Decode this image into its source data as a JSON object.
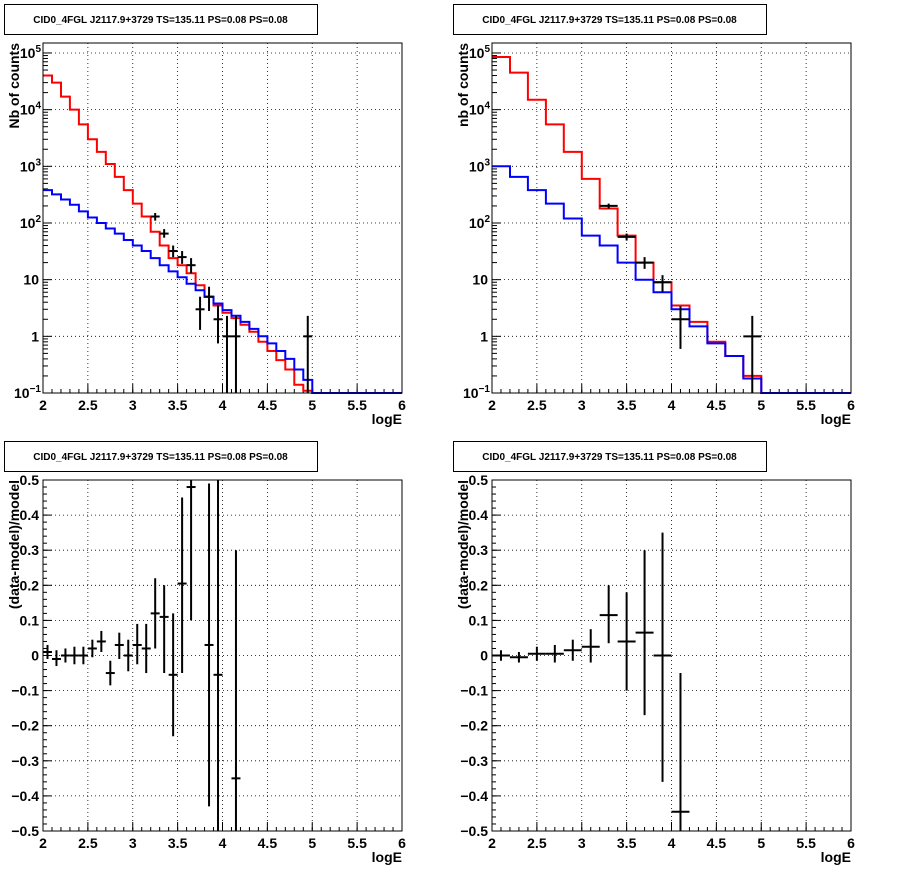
{
  "chart_data": [
    {
      "type": "histogram",
      "title": "CID0_4FGL J2117.9+3729 TS=135.11 PS=0.08 PS=0.08",
      "xlabel": "logE",
      "ylabel": "Nb of counts",
      "xlim": [
        2,
        6
      ],
      "ylim": [
        0.1,
        150000
      ],
      "yscale": "log",
      "grid": true,
      "x_ticks": [
        "2",
        "2.5",
        "3",
        "3.5",
        "4",
        "4.5",
        "5",
        "5.5",
        "6"
      ],
      "y_ticks": [
        {
          "value": 0.1,
          "base": "10",
          "exp": "−1"
        },
        {
          "value": 1,
          "label": "1"
        },
        {
          "value": 10,
          "label": "10"
        },
        {
          "value": 100,
          "base": "10",
          "exp": "2"
        },
        {
          "value": 1000,
          "base": "10",
          "exp": "3"
        },
        {
          "value": 10000,
          "base": "10",
          "exp": "4"
        },
        {
          "value": 100000,
          "base": "10",
          "exp": "5"
        }
      ],
      "bin_edges": [
        2.0,
        2.1,
        2.2,
        2.3,
        2.4,
        2.5,
        2.6,
        2.7,
        2.8,
        2.9,
        3.0,
        3.1,
        3.2,
        3.3,
        3.4,
        3.5,
        3.6,
        3.7,
        3.8,
        3.9,
        4.0,
        4.1,
        4.2,
        4.3,
        4.4,
        4.5,
        4.6,
        4.7,
        4.8,
        4.9,
        5.0,
        5.1,
        5.2,
        5.3,
        5.4,
        5.5,
        5.6,
        5.7,
        5.8,
        5.9,
        6.0
      ],
      "series": [
        {
          "color": "#ff0000",
          "values": [
            40000,
            30000,
            17000,
            10000,
            5500,
            3000,
            1800,
            1100,
            650,
            380,
            220,
            130,
            70,
            40,
            24,
            18,
            13,
            8,
            5,
            3.5,
            2.6,
            2.1,
            1.6,
            1.2,
            0.8,
            0.55,
            0.38,
            0.26,
            0.14,
            0.11,
            0.1,
            0.1,
            0.1,
            0.1,
            0.1,
            0.1,
            0.1,
            0.1,
            0.1,
            0.1
          ]
        },
        {
          "color": "#0000ff",
          "values": [
            380,
            320,
            260,
            210,
            160,
            125,
            100,
            80,
            65,
            50,
            40,
            32,
            24,
            18,
            14,
            11,
            8.5,
            6.5,
            5,
            3.8,
            2.9,
            2.3,
            1.8,
            1.35,
            1.0,
            0.75,
            0.55,
            0.4,
            0.26,
            0.17,
            0.1,
            0.1,
            0.1,
            0.1,
            0.1,
            0.1,
            0.1,
            0.1,
            0.1,
            0.1
          ]
        }
      ],
      "points": [
        {
          "x": 3.25,
          "y": 130,
          "ylo": 110,
          "yhi": 150
        },
        {
          "x": 3.35,
          "y": 65,
          "ylo": 55,
          "yhi": 78
        },
        {
          "x": 3.45,
          "y": 32,
          "ylo": 25,
          "yhi": 40
        },
        {
          "x": 3.55,
          "y": 25,
          "ylo": 19,
          "yhi": 32
        },
        {
          "x": 3.65,
          "y": 18,
          "ylo": 13,
          "yhi": 24
        },
        {
          "x": 3.75,
          "y": 3,
          "ylo": 1.3,
          "yhi": 5
        },
        {
          "x": 3.85,
          "y": 5,
          "ylo": 2.8,
          "yhi": 7.5
        },
        {
          "x": 3.95,
          "y": 2,
          "ylo": 0.75,
          "yhi": 3.5
        },
        {
          "x": 4.05,
          "y": 1,
          "ylo": 0.1,
          "yhi": 2.3
        },
        {
          "x": 4.15,
          "y": 1,
          "ylo": 0.1,
          "yhi": 2.3
        },
        {
          "x": 4.95,
          "y": 1,
          "ylo": 0.1,
          "yhi": 2.3
        }
      ]
    },
    {
      "type": "histogram",
      "title": "CID0_4FGL J2117.9+3729 TS=135.11 PS=0.08 PS=0.08",
      "xlabel": "logE",
      "ylabel": "nb of counts",
      "xlim": [
        2,
        6
      ],
      "ylim": [
        0.1,
        150000
      ],
      "yscale": "log",
      "grid": true,
      "x_ticks": [
        "2",
        "2.5",
        "3",
        "3.5",
        "4",
        "4.5",
        "5",
        "5.5",
        "6"
      ],
      "y_ticks": [
        {
          "value": 0.1,
          "base": "10",
          "exp": "−1"
        },
        {
          "value": 1,
          "label": "1"
        },
        {
          "value": 10,
          "label": "10"
        },
        {
          "value": 100,
          "base": "10",
          "exp": "2"
        },
        {
          "value": 1000,
          "base": "10",
          "exp": "3"
        },
        {
          "value": 10000,
          "base": "10",
          "exp": "4"
        },
        {
          "value": 100000,
          "base": "10",
          "exp": "5"
        }
      ],
      "bin_edges": [
        2.0,
        2.2,
        2.4,
        2.6,
        2.8,
        3.0,
        3.2,
        3.4,
        3.6,
        3.8,
        4.0,
        4.2,
        4.4,
        4.6,
        4.8,
        5.0,
        5.2,
        5.4,
        5.6,
        5.8,
        6.0
      ],
      "series": [
        {
          "color": "#ff0000",
          "values": [
            85000,
            45000,
            15000,
            5500,
            1800,
            600,
            180,
            60,
            20,
            9,
            3.5,
            1.8,
            0.8,
            0.45,
            0.2,
            0.1,
            0.1,
            0.1,
            0.1,
            0.1
          ]
        },
        {
          "color": "#0000ff",
          "values": [
            1000,
            650,
            380,
            220,
            120,
            60,
            40,
            20,
            10,
            6,
            3,
            1.5,
            0.75,
            0.45,
            0.18,
            0.1,
            0.1,
            0.1,
            0.1,
            0.1
          ]
        }
      ],
      "points": [
        {
          "x": 3.3,
          "y": 200,
          "ylo": 180,
          "yhi": 220
        },
        {
          "x": 3.5,
          "y": 57,
          "ylo": 49,
          "yhi": 65
        },
        {
          "x": 3.7,
          "y": 20,
          "ylo": 15.5,
          "yhi": 25
        },
        {
          "x": 3.9,
          "y": 9,
          "ylo": 6,
          "yhi": 12
        },
        {
          "x": 4.1,
          "y": 2,
          "ylo": 0.6,
          "yhi": 3.4
        },
        {
          "x": 4.9,
          "y": 1,
          "ylo": 0.1,
          "yhi": 2.3
        }
      ]
    },
    {
      "type": "scatter",
      "title": "CID0_4FGL J2117.9+3729 TS=135.11 PS=0.08 PS=0.08",
      "xlabel": "logE",
      "ylabel": "(data-model)/model",
      "xlim": [
        2,
        6
      ],
      "ylim": [
        -0.5,
        0.5
      ],
      "grid": true,
      "x_ticks": [
        "2",
        "2.5",
        "3",
        "3.5",
        "4",
        "4.5",
        "5",
        "5.5",
        "6"
      ],
      "y_ticks": [
        {
          "value": -0.5,
          "label": "−0.5"
        },
        {
          "value": -0.4,
          "label": "−0.4"
        },
        {
          "value": -0.3,
          "label": "−0.3"
        },
        {
          "value": -0.2,
          "label": "−0.2"
        },
        {
          "value": -0.1,
          "label": "−0.1"
        },
        {
          "value": 0,
          "label": "0"
        },
        {
          "value": 0.1,
          "label": "0.1"
        },
        {
          "value": 0.2,
          "label": "0.2"
        },
        {
          "value": 0.3,
          "label": "0.3"
        },
        {
          "value": 0.4,
          "label": "0.4"
        },
        {
          "value": 0.5,
          "label": "0.5"
        }
      ],
      "xerr": 0.05,
      "points": [
        {
          "x": 2.05,
          "y": 0.01,
          "ylo": -0.01,
          "yhi": 0.03
        },
        {
          "x": 2.15,
          "y": -0.01,
          "ylo": -0.03,
          "yhi": 0.015
        },
        {
          "x": 2.25,
          "y": 0.0,
          "ylo": -0.02,
          "yhi": 0.02
        },
        {
          "x": 2.35,
          "y": 0.0,
          "ylo": -0.025,
          "yhi": 0.025
        },
        {
          "x": 2.45,
          "y": 0.0,
          "ylo": -0.025,
          "yhi": 0.025
        },
        {
          "x": 2.55,
          "y": 0.02,
          "ylo": -0.005,
          "yhi": 0.045
        },
        {
          "x": 2.65,
          "y": 0.04,
          "ylo": 0.01,
          "yhi": 0.07
        },
        {
          "x": 2.75,
          "y": -0.05,
          "ylo": -0.085,
          "yhi": -0.015
        },
        {
          "x": 2.85,
          "y": 0.03,
          "ylo": -0.01,
          "yhi": 0.065
        },
        {
          "x": 2.95,
          "y": 0.0,
          "ylo": -0.045,
          "yhi": 0.045
        },
        {
          "x": 3.05,
          "y": 0.03,
          "ylo": -0.025,
          "yhi": 0.09
        },
        {
          "x": 3.15,
          "y": 0.02,
          "ylo": -0.05,
          "yhi": 0.09
        },
        {
          "x": 3.25,
          "y": 0.12,
          "ylo": 0.02,
          "yhi": 0.22
        },
        {
          "x": 3.35,
          "y": 0.11,
          "ylo": -0.05,
          "yhi": 0.2
        },
        {
          "x": 3.45,
          "y": -0.055,
          "ylo": -0.23,
          "yhi": 0.12
        },
        {
          "x": 3.55,
          "y": 0.205,
          "ylo": -0.05,
          "yhi": 0.45
        },
        {
          "x": 3.65,
          "y": 0.48,
          "ylo": 0.1,
          "yhi": 0.5
        },
        {
          "x": 3.85,
          "y": 0.03,
          "ylo": -0.43,
          "yhi": 0.49
        },
        {
          "x": 3.95,
          "y": -0.055,
          "ylo": -0.5,
          "yhi": 0.5
        },
        {
          "x": 4.15,
          "y": -0.35,
          "ylo": -0.5,
          "yhi": 0.3
        }
      ]
    },
    {
      "type": "scatter",
      "title": "CID0_4FGL J2117.9+3729 TS=135.11 PS=0.08 PS=0.08",
      "xlabel": "logE",
      "ylabel": "(data-model)/model",
      "xlim": [
        2,
        6
      ],
      "ylim": [
        -0.5,
        0.5
      ],
      "grid": true,
      "x_ticks": [
        "2",
        "2.5",
        "3",
        "3.5",
        "4",
        "4.5",
        "5",
        "5.5",
        "6"
      ],
      "y_ticks": [
        {
          "value": -0.5,
          "label": "−0.5"
        },
        {
          "value": -0.4,
          "label": "−0.4"
        },
        {
          "value": -0.3,
          "label": "−0.3"
        },
        {
          "value": -0.2,
          "label": "−0.2"
        },
        {
          "value": -0.1,
          "label": "−0.1"
        },
        {
          "value": 0,
          "label": "0"
        },
        {
          "value": 0.1,
          "label": "0.1"
        },
        {
          "value": 0.2,
          "label": "0.2"
        },
        {
          "value": 0.3,
          "label": "0.3"
        },
        {
          "value": 0.4,
          "label": "0.4"
        },
        {
          "value": 0.5,
          "label": "0.5"
        }
      ],
      "xerr": 0.1,
      "points": [
        {
          "x": 2.1,
          "y": 0.0,
          "ylo": -0.015,
          "yhi": 0.015
        },
        {
          "x": 2.3,
          "y": -0.005,
          "ylo": -0.02,
          "yhi": 0.01
        },
        {
          "x": 2.5,
          "y": 0.005,
          "ylo": -0.015,
          "yhi": 0.025
        },
        {
          "x": 2.7,
          "y": 0.005,
          "ylo": -0.02,
          "yhi": 0.03
        },
        {
          "x": 2.9,
          "y": 0.015,
          "ylo": -0.015,
          "yhi": 0.045
        },
        {
          "x": 3.1,
          "y": 0.025,
          "ylo": -0.02,
          "yhi": 0.075
        },
        {
          "x": 3.3,
          "y": 0.115,
          "ylo": 0.035,
          "yhi": 0.2
        },
        {
          "x": 3.5,
          "y": 0.04,
          "ylo": -0.1,
          "yhi": 0.18
        },
        {
          "x": 3.7,
          "y": 0.065,
          "ylo": -0.17,
          "yhi": 0.3
        },
        {
          "x": 3.9,
          "y": 0.0,
          "ylo": -0.36,
          "yhi": 0.35
        },
        {
          "x": 4.1,
          "y": -0.445,
          "ylo": -0.5,
          "yhi": -0.05
        }
      ]
    }
  ]
}
